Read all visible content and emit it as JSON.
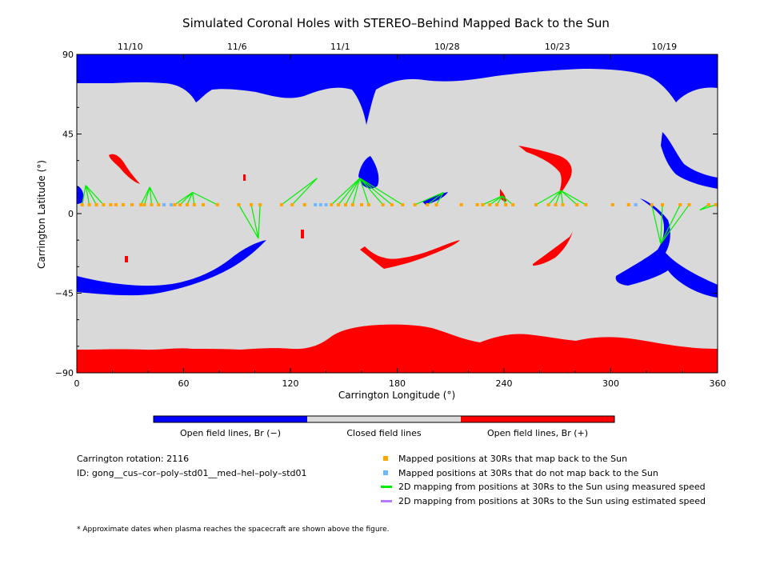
{
  "chart_data": {
    "type": "map",
    "title": "Simulated Coronal Holes with STEREO–Behind Mapped Back to the Sun",
    "xlabel": "Carrington Longitude (°)",
    "ylabel": "Carrington Latitude (°)",
    "xlim": [
      0,
      360
    ],
    "ylim": [
      -90,
      90
    ],
    "xticks": [
      "0",
      "60",
      "120",
      "180",
      "240",
      "300",
      "360"
    ],
    "yticks": [
      "90",
      "45",
      "0",
      "−45",
      "−90"
    ],
    "top_dates": [
      {
        "lon": 30,
        "label": "11/10"
      },
      {
        "lon": 90,
        "label": "11/6"
      },
      {
        "lon": 148,
        "label": "11/1"
      },
      {
        "lon": 208,
        "label": "10/28"
      },
      {
        "lon": 270,
        "label": "10/23"
      },
      {
        "lon": 330,
        "label": "10/19"
      }
    ],
    "colors": {
      "open_negative": "#0000ff",
      "closed": "#d9d9d9",
      "open_positive": "#ff0000",
      "mapped_back": "#ffa500",
      "not_mapped": "#6fb7ff",
      "measured_line": "#00ee00",
      "estimated_line": "#b57bff"
    },
    "colorbar": [
      "Open field lines, Br (−)",
      "Closed field lines",
      "Open field lines, Br (+)"
    ],
    "mapped_points_lat": 5,
    "mapped_back_lons": [
      3,
      7,
      11,
      15,
      19,
      22,
      26,
      31,
      36,
      38,
      42,
      46,
      55,
      58,
      62,
      66,
      71,
      79,
      91,
      98,
      103,
      115,
      121,
      128,
      143,
      147,
      151,
      155,
      160,
      164,
      172,
      177,
      183,
      190,
      197,
      202,
      216,
      225,
      228,
      232,
      236,
      241,
      245,
      258,
      265,
      269,
      273,
      281,
      286,
      301,
      310,
      323,
      329,
      339,
      344,
      355,
      359
    ],
    "not_mapped_lons": [
      49,
      53,
      134,
      137,
      140,
      314
    ],
    "measured_links": [
      [
        3,
        5,
        5,
        16
      ],
      [
        7,
        5,
        5,
        16
      ],
      [
        11,
        5,
        5,
        16
      ],
      [
        15,
        5,
        5,
        16
      ],
      [
        36,
        5,
        41,
        15
      ],
      [
        38,
        5,
        41,
        15
      ],
      [
        42,
        5,
        41,
        15
      ],
      [
        46,
        5,
        41,
        15
      ],
      [
        55,
        5,
        65,
        12
      ],
      [
        58,
        5,
        65,
        12
      ],
      [
        62,
        5,
        65,
        12
      ],
      [
        66,
        5,
        65,
        12
      ],
      [
        79,
        5,
        65,
        12
      ],
      [
        91,
        5,
        102,
        -14
      ],
      [
        98,
        5,
        102,
        -14
      ],
      [
        103,
        5,
        102,
        -14
      ],
      [
        115,
        5,
        135,
        20
      ],
      [
        121,
        5,
        135,
        20
      ],
      [
        143,
        5,
        159,
        20
      ],
      [
        147,
        5,
        159,
        20
      ],
      [
        151,
        5,
        159,
        20
      ],
      [
        155,
        5,
        159,
        20
      ],
      [
        164,
        5,
        159,
        20
      ],
      [
        172,
        5,
        159,
        20
      ],
      [
        177,
        5,
        159,
        20
      ],
      [
        183,
        5,
        159,
        20
      ],
      [
        190,
        5,
        206,
        12
      ],
      [
        197,
        5,
        206,
        12
      ],
      [
        202,
        5,
        206,
        12
      ],
      [
        228,
        5,
        239,
        10
      ],
      [
        232,
        5,
        239,
        10
      ],
      [
        236,
        5,
        239,
        10
      ],
      [
        241,
        5,
        239,
        10
      ],
      [
        245,
        5,
        239,
        10
      ],
      [
        258,
        5,
        272,
        13
      ],
      [
        265,
        5,
        272,
        13
      ],
      [
        269,
        5,
        272,
        13
      ],
      [
        273,
        5,
        272,
        13
      ],
      [
        281,
        5,
        272,
        13
      ],
      [
        286,
        5,
        272,
        13
      ],
      [
        323,
        5,
        328,
        -17
      ],
      [
        329,
        5,
        328,
        -17
      ],
      [
        339,
        5,
        328,
        -17
      ],
      [
        344,
        5,
        328,
        -17
      ],
      [
        355,
        5,
        350,
        2
      ],
      [
        359,
        5,
        350,
        2
      ]
    ]
  },
  "info": {
    "rotation": "Carrington rotation: 2116",
    "id": "ID: gong__cus–cor–poly–std01__med–hel–poly–std01"
  },
  "legend": {
    "mapped": "Mapped positions at 30Rs that map back to the Sun",
    "not_mapped": "Mapped positions at 30Rs that do not map back to the Sun",
    "measured": "2D mapping from positions at 30Rs to the Sun using measured speed",
    "estimated": "2D mapping from positions at 30Rs to the Sun using estimated speed"
  },
  "footnote": "* Approximate dates when plasma reaches the spacecraft are shown above the figure."
}
